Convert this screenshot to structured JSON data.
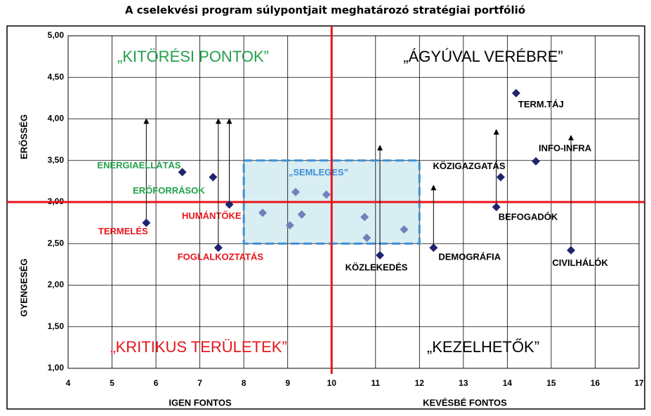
{
  "chart_data": {
    "type": "scatter",
    "title": "A cselekvési program súlypontjait meghatározó stratégiai portfólió",
    "x_labels": [
      "IGEN FONTOS",
      "KEVÉSBÉ FONTOS"
    ],
    "y_labels": [
      "ERŐSSÉG",
      "GYENGESÉG"
    ],
    "xlim": [
      4,
      17
    ],
    "xticks": [
      4,
      5,
      6,
      7,
      8,
      9,
      10,
      11,
      12,
      13,
      14,
      15,
      16,
      17
    ],
    "ylim": [
      1,
      5
    ],
    "yticks": [
      {
        "value": 1,
        "label": "1,00"
      },
      {
        "value": 1.5,
        "label": "1,50"
      },
      {
        "value": 2,
        "label": "2,00"
      },
      {
        "value": 2.5,
        "label": "2,50"
      },
      {
        "value": 3,
        "label": "3,00"
      },
      {
        "value": 3.5,
        "label": "3,50"
      },
      {
        "value": 4,
        "label": "4,00"
      },
      {
        "value": 4.5,
        "label": "4,50"
      },
      {
        "value": 5,
        "label": "5,00"
      }
    ],
    "grid": true,
    "color": "#1f2370",
    "x": [
      5.78,
      6.6,
      7.3,
      7.67,
      7.42,
      11.1,
      12.32,
      13.75,
      13.85,
      14.2,
      14.65,
      15.45
    ],
    "y": [
      2.75,
      3.36,
      3.3,
      2.97,
      2.45,
      2.36,
      2.45,
      2.94,
      3.3,
      4.31,
      3.49,
      2.42
    ],
    "labels": [
      "TERMELÉS",
      "ENERGIAELLÁTÁS",
      "ERŐFORRÁSOK",
      "HUMÁNTŐKE",
      "FOGLALKOZTATÁS",
      "KÖZLEKEDÉS",
      "DEMOGRÁFIA",
      "BEFOGADÓK",
      "KÖZIGAZGATÁS",
      "TERM.TÁJ",
      "INFO-INFRA",
      "CIVILHÁLÓK"
    ],
    "label_colors": [
      "#e8141c",
      "#22a14a",
      "#22a14a",
      "#e8141c",
      "#e8141c",
      "#000000",
      "#000000",
      "#000000",
      "#000000",
      "#000000",
      "#000000",
      "#000000"
    ],
    "arrow_to": [
      4.0,
      null,
      null,
      4.0,
      4.0,
      3.68,
      3.2,
      3.87,
      null,
      null,
      null,
      3.8
    ],
    "neutral": {
      "color": "#6f82bb",
      "x": [
        8.43,
        9.05,
        9.18,
        9.32,
        9.88,
        10.75,
        10.8,
        11.65
      ],
      "y": [
        2.87,
        2.72,
        3.12,
        2.85,
        3.09,
        2.82,
        2.57,
        2.67
      ]
    },
    "box": {
      "xlim": [
        8,
        12
      ],
      "ylim": [
        2.5,
        3.5
      ],
      "label": "„SEMLEGES”",
      "color": "#3d8fd6",
      "fill": "#d9eef3"
    },
    "dividers": {
      "x": 10,
      "y": 3,
      "color": "#e8141c"
    },
    "quadrants": [
      {
        "label": "„KITÖRÉSI PONTOK”",
        "color": "#22a14a"
      },
      {
        "label": "„ÁGYÚVAL VERÉBRE”",
        "color": "#000000"
      },
      {
        "label": "„KRITIKUS TERÜLETEK”",
        "color": "#e8141c"
      },
      {
        "label": "„KEZELHETŐK”",
        "color": "#000000"
      }
    ]
  }
}
